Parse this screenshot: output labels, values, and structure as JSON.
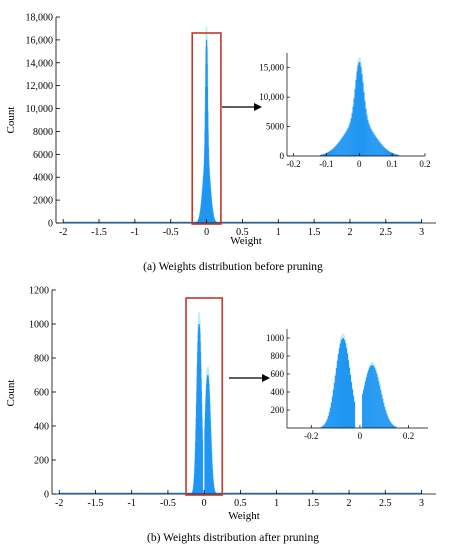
{
  "colors": {
    "bar": "#2196f3",
    "halo": "#bfeef6",
    "box": "#c0392b",
    "axis": "#000000"
  },
  "chart_data": [
    {
      "id": "a",
      "type": "bar",
      "caption": "(a)  Weights distribution before pruning",
      "xlabel": "Weight",
      "ylabel": "Count",
      "xlim": [
        -2.1,
        3.2
      ],
      "ylim": [
        0,
        18000
      ],
      "xticks": [
        -2,
        -1.5,
        -1,
        -0.5,
        0,
        0.5,
        1,
        1.5,
        2,
        2.5,
        3
      ],
      "xtick_labels": [
        "-2",
        "-1.5",
        "-1",
        "-0.5",
        "0",
        "0.5",
        "1",
        "1.5",
        "2",
        "2.5",
        "3"
      ],
      "yticks": [
        0,
        2000,
        4000,
        6000,
        8000,
        10000,
        12000,
        14000,
        16000,
        18000
      ],
      "ytick_labels": [
        "0",
        "2000",
        "4000",
        "6000",
        "8000",
        "10,000",
        "12,000",
        "14,000",
        "16,000",
        "18,000"
      ],
      "highlight_x": [
        -0.2,
        0.2
      ],
      "grid": false,
      "distribution": "unimodal, centered near 0, peak about 16000, most weights between -0.2 and 0.2",
      "inset": {
        "xlim": [
          -0.22,
          0.2
        ],
        "ylim": [
          0,
          17500
        ],
        "xticks": [
          -0.2,
          -0.1,
          0,
          0.1,
          0.2
        ],
        "xtick_labels": [
          "-0.2",
          "-0.1",
          "0",
          "0.1",
          "0.2"
        ],
        "yticks": [
          0,
          5000,
          10000,
          15000
        ],
        "ytick_labels": [
          "0",
          "5000",
          "10,000",
          "15,000"
        ]
      }
    },
    {
      "id": "b",
      "type": "bar",
      "caption": "(b)  Weights distribution after pruning",
      "xlabel": "Weight",
      "ylabel": "Count",
      "xlim": [
        -2.1,
        3.2
      ],
      "ylim": [
        0,
        1200
      ],
      "xticks": [
        -2,
        -1.5,
        -1,
        -0.5,
        0,
        0.5,
        1,
        1.5,
        2,
        2.5,
        3
      ],
      "xtick_labels": [
        "-2",
        "-1.5",
        "-1",
        "-0.5",
        "0",
        "0.5",
        "1",
        "1.5",
        "2",
        "2.5",
        "3"
      ],
      "yticks": [
        0,
        200,
        400,
        600,
        800,
        1000,
        1200
      ],
      "ytick_labels": [
        "0",
        "200",
        "400",
        "600",
        "800",
        "1000",
        "1200"
      ],
      "highlight_x": [
        -0.25,
        0.25
      ],
      "grid": false,
      "distribution": "bimodal after pruning, gap around 0, left peak about 1000 near -0.07, right peak about 700 near 0.05",
      "inset": {
        "xlim": [
          -0.3,
          0.28
        ],
        "ylim": [
          0,
          1100
        ],
        "xticks": [
          -0.2,
          0,
          0.2
        ],
        "xtick_labels": [
          "-0.2",
          "0",
          "0.2"
        ],
        "yticks": [
          200,
          400,
          600,
          800,
          1000
        ],
        "ytick_labels": [
          "200",
          "400",
          "600",
          "800",
          "1000"
        ]
      }
    }
  ]
}
